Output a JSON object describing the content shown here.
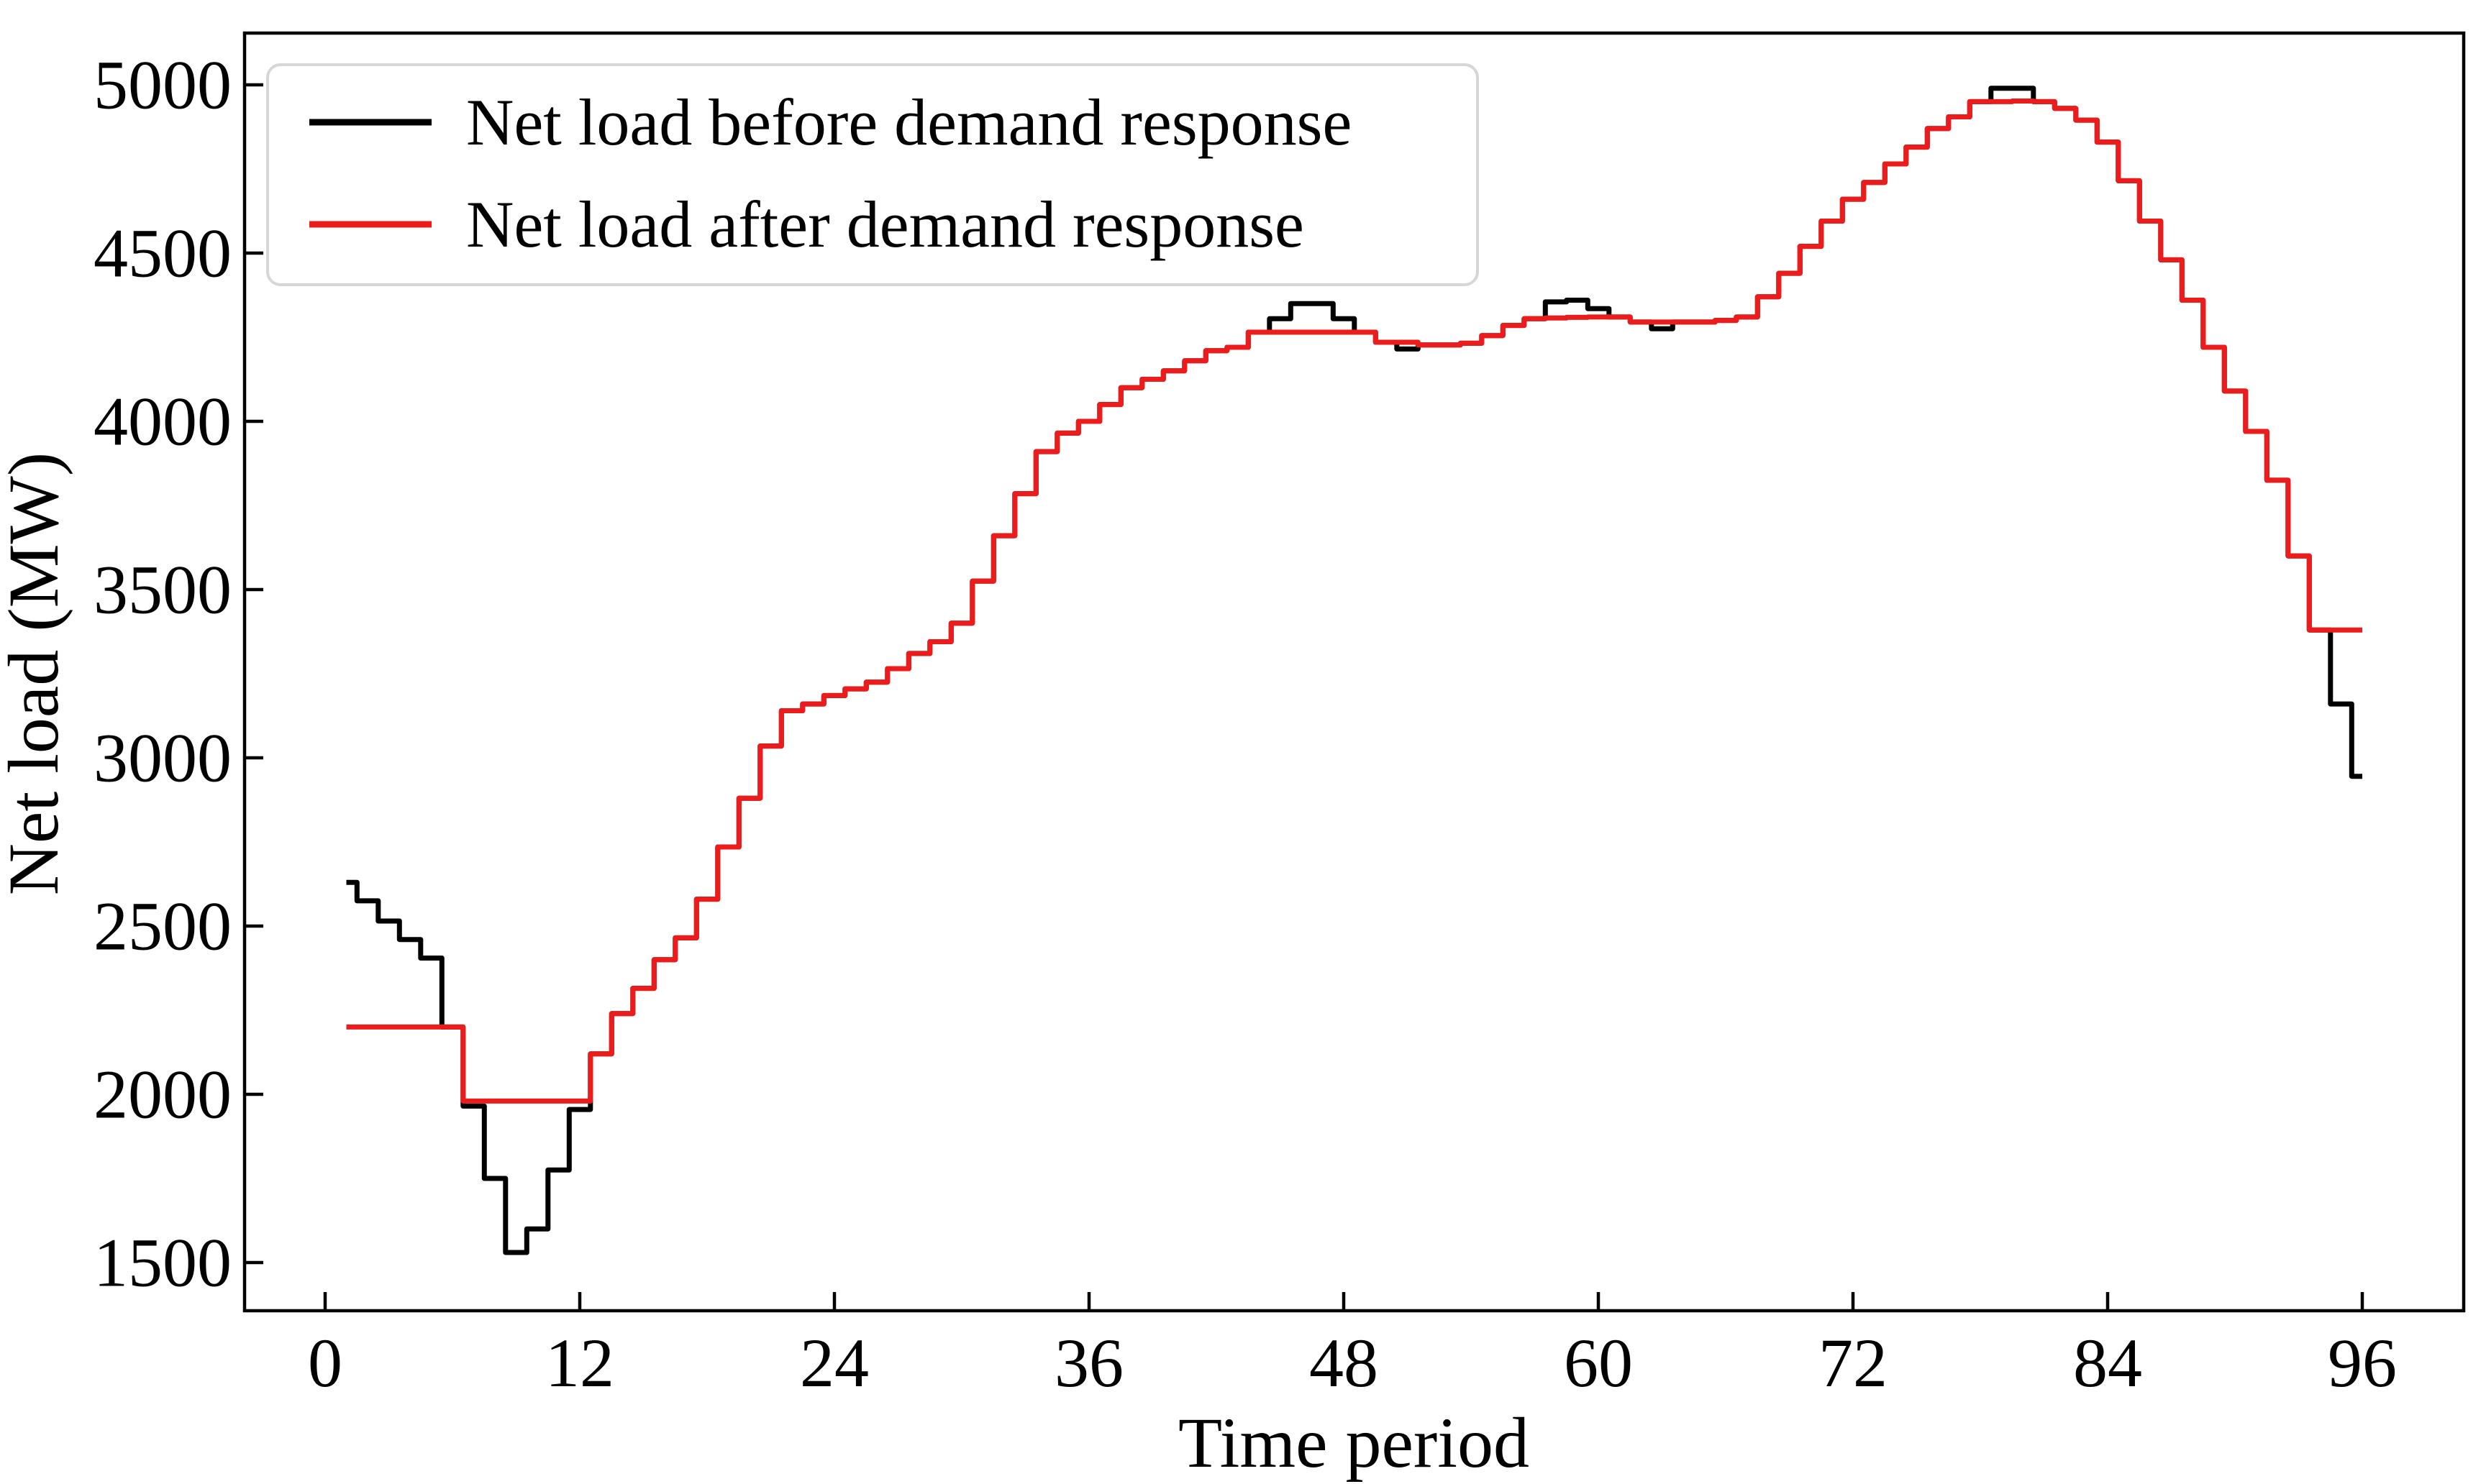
{
  "chart_data": {
    "type": "line",
    "subtype": "step",
    "step_style": "mid",
    "title": "",
    "xlabel": "Time period",
    "ylabel": "Net load (MW)",
    "x_ticks": [
      0,
      12,
      24,
      36,
      48,
      60,
      72,
      84,
      96
    ],
    "y_ticks": [
      1500,
      2000,
      2500,
      3000,
      3500,
      4000,
      4500,
      5000
    ],
    "xlim": [
      -3.8,
      100.8
    ],
    "ylim": [
      1352,
      5158
    ],
    "grid": false,
    "legend_position": "upper left",
    "x": [
      1,
      2,
      3,
      4,
      5,
      6,
      7,
      8,
      9,
      10,
      11,
      12,
      13,
      14,
      15,
      16,
      17,
      18,
      19,
      20,
      21,
      22,
      23,
      24,
      25,
      26,
      27,
      28,
      29,
      30,
      31,
      32,
      33,
      34,
      35,
      36,
      37,
      38,
      39,
      40,
      41,
      42,
      43,
      44,
      45,
      46,
      47,
      48,
      49,
      50,
      51,
      52,
      53,
      54,
      55,
      56,
      57,
      58,
      59,
      60,
      61,
      62,
      63,
      64,
      65,
      66,
      67,
      68,
      69,
      70,
      71,
      72,
      73,
      74,
      75,
      76,
      77,
      78,
      79,
      80,
      81,
      82,
      83,
      84,
      85,
      86,
      87,
      88,
      89,
      90,
      91,
      92,
      93,
      94,
      95,
      96
    ],
    "series": [
      {
        "name": "Net load before demand response",
        "color": "#000000",
        "values": [
          2630,
          2575,
          2515,
          2460,
          2405,
          2200,
          1965,
          1750,
          1530,
          1600,
          1775,
          1955,
          2120,
          2240,
          2315,
          2400,
          2465,
          2580,
          2735,
          2880,
          3035,
          3140,
          3160,
          3185,
          3205,
          3225,
          3265,
          3310,
          3345,
          3400,
          3525,
          3660,
          3785,
          3910,
          3965,
          4000,
          4050,
          4100,
          4125,
          4150,
          4180,
          4210,
          4220,
          4265,
          4305,
          4350,
          4350,
          4305,
          4265,
          4235,
          4215,
          4227,
          4227,
          4232,
          4255,
          4285,
          4305,
          4355,
          4360,
          4335,
          4310,
          4295,
          4275,
          4295,
          4295,
          4300,
          4310,
          4370,
          4440,
          4520,
          4595,
          4660,
          4710,
          4765,
          4815,
          4870,
          4905,
          4950,
          4990,
          4990,
          4950,
          4930,
          4895,
          4830,
          4715,
          4595,
          4480,
          4360,
          4220,
          4090,
          3970,
          3825,
          3600,
          3380,
          3160,
          2945
        ]
      },
      {
        "name": "Net load after demand response",
        "color": "#ed1c1c",
        "values": [
          2200,
          2200,
          2200,
          2200,
          2200,
          2200,
          1980,
          1980,
          1980,
          1980,
          1980,
          1980,
          2120,
          2240,
          2315,
          2400,
          2465,
          2580,
          2735,
          2880,
          3035,
          3140,
          3160,
          3185,
          3205,
          3225,
          3265,
          3310,
          3345,
          3400,
          3525,
          3660,
          3785,
          3910,
          3965,
          4000,
          4050,
          4100,
          4125,
          4150,
          4180,
          4210,
          4220,
          4265,
          4265,
          4265,
          4265,
          4265,
          4265,
          4235,
          4235,
          4227,
          4227,
          4232,
          4255,
          4285,
          4305,
          4307,
          4309,
          4310,
          4310,
          4295,
          4295,
          4295,
          4295,
          4300,
          4310,
          4370,
          4440,
          4520,
          4595,
          4660,
          4710,
          4765,
          4815,
          4870,
          4905,
          4950,
          4950,
          4952,
          4950,
          4930,
          4895,
          4830,
          4715,
          4595,
          4480,
          4360,
          4220,
          4090,
          3970,
          3825,
          3600,
          3380,
          3380,
          3380
        ]
      }
    ],
    "axis_color": "#000000",
    "legend_border_color": "#d6d6d6",
    "background_color": "#ffffff"
  }
}
